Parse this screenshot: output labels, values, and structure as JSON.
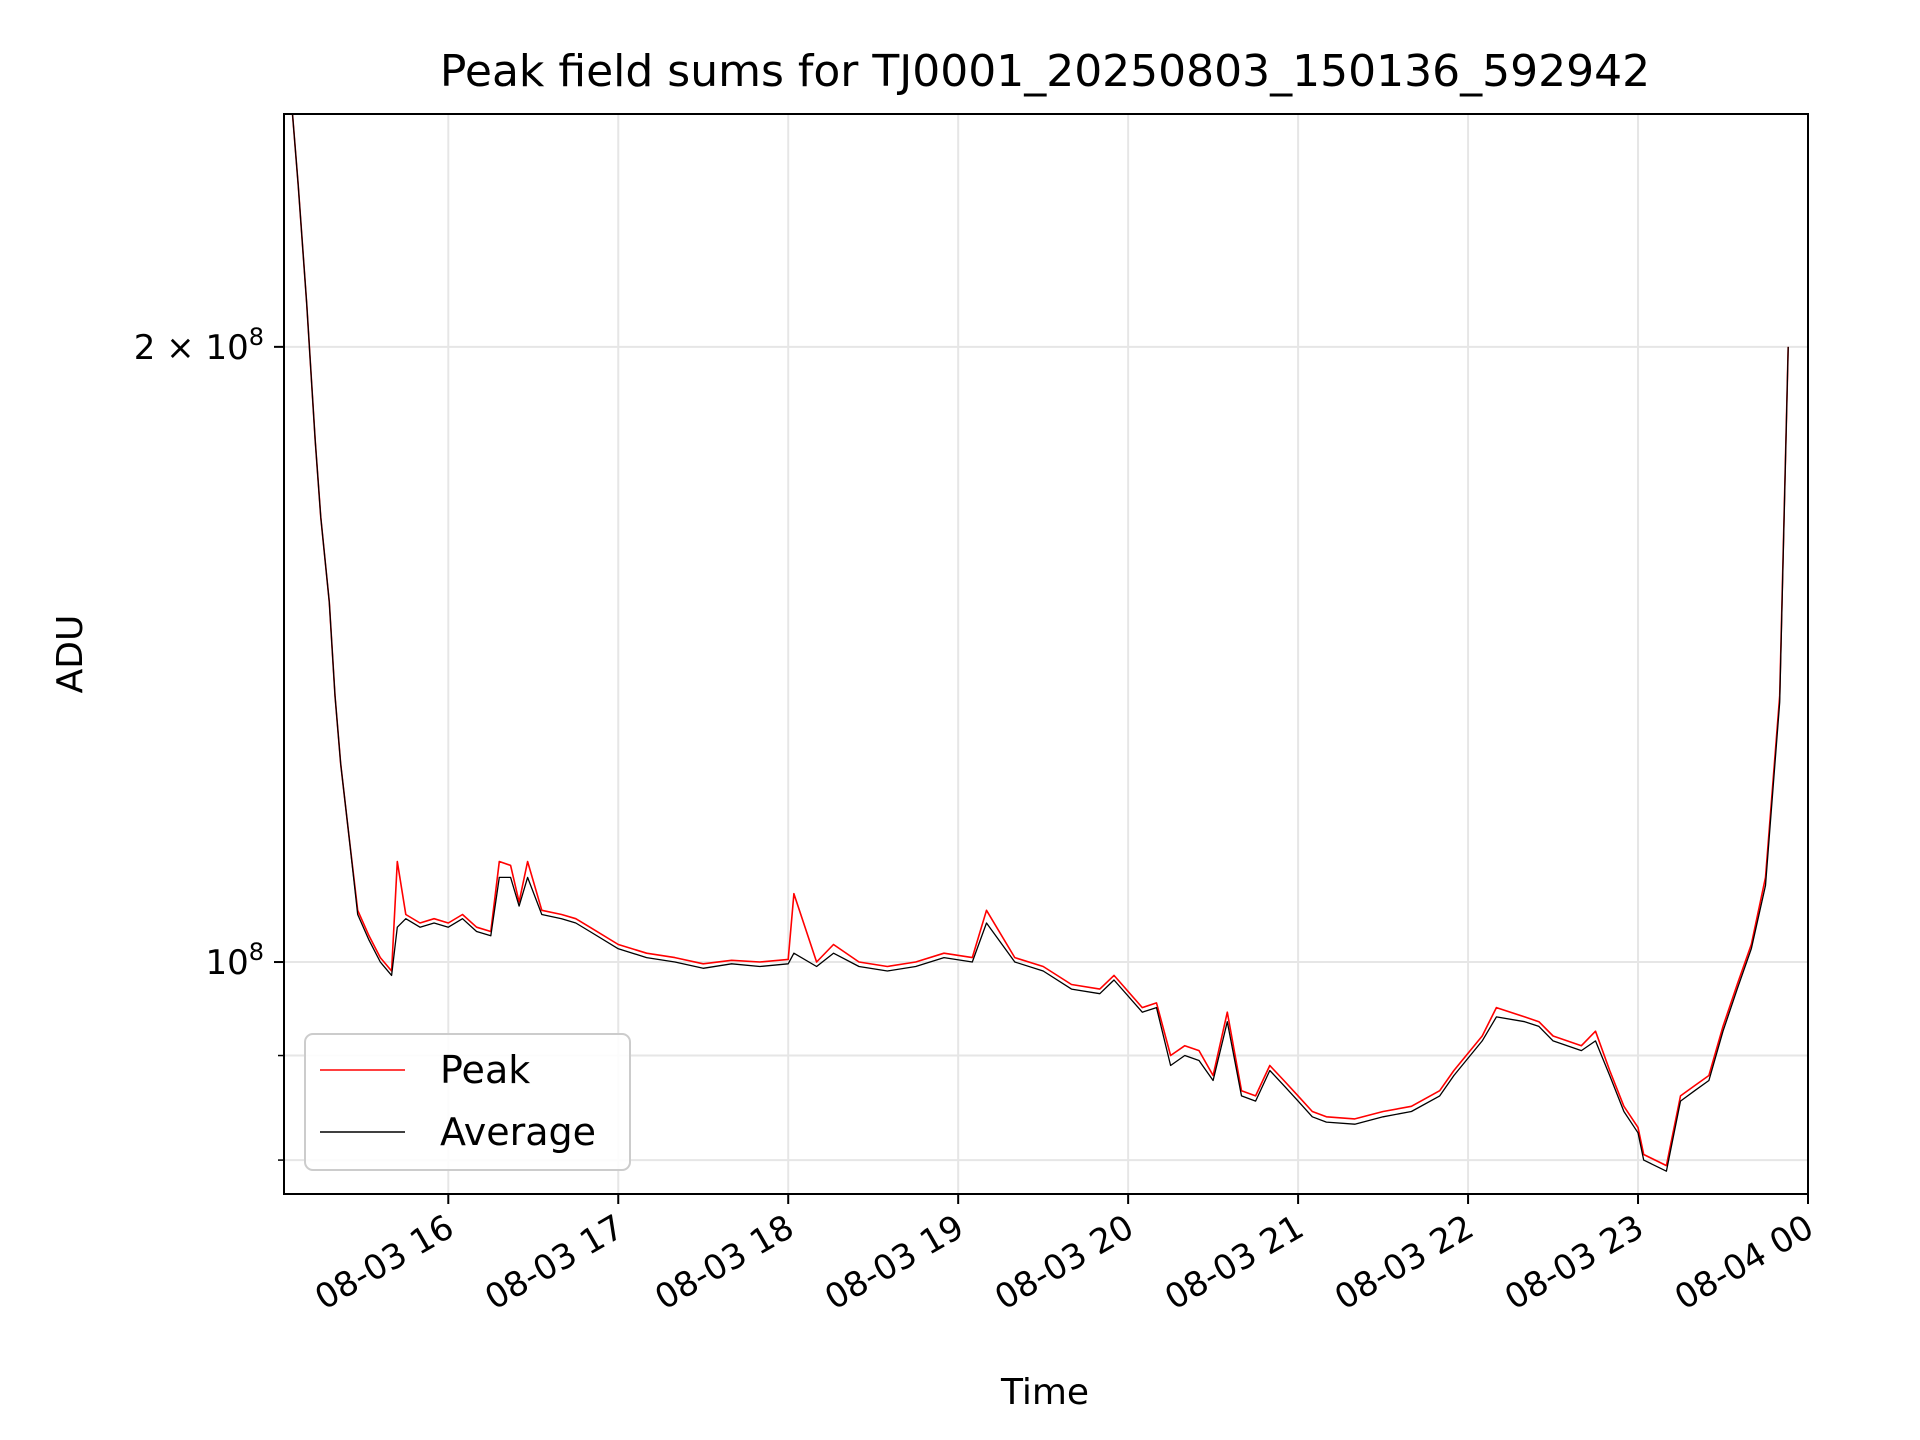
{
  "chart_data": {
    "type": "line",
    "title": "Peak field sums for TJ0001_20250803_150136_592942",
    "xlabel": "Time",
    "ylabel": "ADU",
    "y_scale": "log",
    "ylim": [
      77000000,
      260000000
    ],
    "xlim": [
      "2025-08-03 15:02",
      "2025-08-04 00:00"
    ],
    "grid": true,
    "legend_position": "lower-left",
    "x_ticks": [
      {
        "value": "2025-08-03 16:00",
        "label": "08-03 16"
      },
      {
        "value": "2025-08-03 17:00",
        "label": "08-03 17"
      },
      {
        "value": "2025-08-03 18:00",
        "label": "08-03 18"
      },
      {
        "value": "2025-08-03 19:00",
        "label": "08-03 19"
      },
      {
        "value": "2025-08-03 20:00",
        "label": "08-03 20"
      },
      {
        "value": "2025-08-03 21:00",
        "label": "08-03 21"
      },
      {
        "value": "2025-08-03 22:00",
        "label": "08-03 22"
      },
      {
        "value": "2025-08-03 23:00",
        "label": "08-03 23"
      },
      {
        "value": "2025-08-04 00:00",
        "label": "08-04 00"
      }
    ],
    "y_ticks": [
      {
        "value": 100000000,
        "base": "10",
        "exp": "8",
        "mult": ""
      },
      {
        "value": 200000000,
        "base": "10",
        "exp": "8",
        "mult": "2 × "
      }
    ],
    "y_minor_ticks": [
      80000000,
      90000000
    ],
    "series": [
      {
        "name": "Peak",
        "color": "#ff0000",
        "x": [
          "2025-08-03 15:05",
          "2025-08-03 15:07",
          "2025-08-03 15:10",
          "2025-08-03 15:13",
          "2025-08-03 15:15",
          "2025-08-03 15:18",
          "2025-08-03 15:20",
          "2025-08-03 15:22",
          "2025-08-03 15:25",
          "2025-08-03 15:28",
          "2025-08-03 15:32",
          "2025-08-03 15:36",
          "2025-08-03 15:40",
          "2025-08-03 15:42",
          "2025-08-03 15:45",
          "2025-08-03 15:50",
          "2025-08-03 15:55",
          "2025-08-03 16:00",
          "2025-08-03 16:05",
          "2025-08-03 16:10",
          "2025-08-03 16:15",
          "2025-08-03 16:18",
          "2025-08-03 16:22",
          "2025-08-03 16:25",
          "2025-08-03 16:28",
          "2025-08-03 16:33",
          "2025-08-03 16:40",
          "2025-08-03 16:45",
          "2025-08-03 16:50",
          "2025-08-03 17:00",
          "2025-08-03 17:10",
          "2025-08-03 17:20",
          "2025-08-03 17:30",
          "2025-08-03 17:40",
          "2025-08-03 17:50",
          "2025-08-03 18:00",
          "2025-08-03 18:02",
          "2025-08-03 18:10",
          "2025-08-03 18:16",
          "2025-08-03 18:25",
          "2025-08-03 18:35",
          "2025-08-03 18:45",
          "2025-08-03 18:55",
          "2025-08-03 19:05",
          "2025-08-03 19:10",
          "2025-08-03 19:20",
          "2025-08-03 19:30",
          "2025-08-03 19:40",
          "2025-08-03 19:50",
          "2025-08-03 19:55",
          "2025-08-03 20:05",
          "2025-08-03 20:10",
          "2025-08-03 20:15",
          "2025-08-03 20:20",
          "2025-08-03 20:25",
          "2025-08-03 20:30",
          "2025-08-03 20:35",
          "2025-08-03 20:40",
          "2025-08-03 20:45",
          "2025-08-03 20:50",
          "2025-08-03 20:55",
          "2025-08-03 21:00",
          "2025-08-03 21:05",
          "2025-08-03 21:10",
          "2025-08-03 21:20",
          "2025-08-03 21:30",
          "2025-08-03 21:40",
          "2025-08-03 21:50",
          "2025-08-03 21:55",
          "2025-08-03 22:05",
          "2025-08-03 22:10",
          "2025-08-03 22:20",
          "2025-08-03 22:25",
          "2025-08-03 22:30",
          "2025-08-03 22:40",
          "2025-08-03 22:45",
          "2025-08-03 22:50",
          "2025-08-03 22:55",
          "2025-08-03 23:00",
          "2025-08-03 23:02",
          "2025-08-03 23:10",
          "2025-08-03 23:15",
          "2025-08-03 23:20",
          "2025-08-03 23:25",
          "2025-08-03 23:30",
          "2025-08-03 23:35",
          "2025-08-03 23:40",
          "2025-08-03 23:45",
          "2025-08-03 23:50",
          "2025-08-03 23:53"
        ],
        "y": [
          260000000,
          240000000,
          210000000,
          180000000,
          165000000,
          150000000,
          135000000,
          125000000,
          115000000,
          106000000,
          103000000,
          100500000,
          99000000,
          112000000,
          105500000,
          104500000,
          105000000,
          104500000,
          105500000,
          104000000,
          103500000,
          112000000,
          111500000,
          107000000,
          112000000,
          106000000,
          105500000,
          105000000,
          104000000,
          102000000,
          101000000,
          100500000,
          99800000,
          100200000,
          100000000,
          100300000,
          108000000,
          100000000,
          102000000,
          100000000,
          99500000,
          100000000,
          101000000,
          100500000,
          106000000,
          100500000,
          99500000,
          97500000,
          97000000,
          98500000,
          95000000,
          95500000,
          90000000,
          91000000,
          90500000,
          88000000,
          94500000,
          86500000,
          86000000,
          89000000,
          87500000,
          86000000,
          84500000,
          84000000,
          83800000,
          84500000,
          85000000,
          86500000,
          88500000,
          92000000,
          95000000,
          94000000,
          93500000,
          92000000,
          91000000,
          92500000,
          88500000,
          85000000,
          83000000,
          80500000,
          79500000,
          86000000,
          87000000,
          88000000,
          93000000,
          97500000,
          102000000,
          110000000,
          135000000,
          200000000
        ]
      },
      {
        "name": "Average",
        "color": "#000000",
        "x": [
          "2025-08-03 15:05",
          "2025-08-03 15:07",
          "2025-08-03 15:10",
          "2025-08-03 15:13",
          "2025-08-03 15:15",
          "2025-08-03 15:18",
          "2025-08-03 15:20",
          "2025-08-03 15:22",
          "2025-08-03 15:25",
          "2025-08-03 15:28",
          "2025-08-03 15:32",
          "2025-08-03 15:36",
          "2025-08-03 15:40",
          "2025-08-03 15:42",
          "2025-08-03 15:45",
          "2025-08-03 15:50",
          "2025-08-03 15:55",
          "2025-08-03 16:00",
          "2025-08-03 16:05",
          "2025-08-03 16:10",
          "2025-08-03 16:15",
          "2025-08-03 16:18",
          "2025-08-03 16:22",
          "2025-08-03 16:25",
          "2025-08-03 16:28",
          "2025-08-03 16:33",
          "2025-08-03 16:40",
          "2025-08-03 16:45",
          "2025-08-03 16:50",
          "2025-08-03 17:00",
          "2025-08-03 17:10",
          "2025-08-03 17:20",
          "2025-08-03 17:30",
          "2025-08-03 17:40",
          "2025-08-03 17:50",
          "2025-08-03 18:00",
          "2025-08-03 18:02",
          "2025-08-03 18:10",
          "2025-08-03 18:16",
          "2025-08-03 18:25",
          "2025-08-03 18:35",
          "2025-08-03 18:45",
          "2025-08-03 18:55",
          "2025-08-03 19:05",
          "2025-08-03 19:10",
          "2025-08-03 19:20",
          "2025-08-03 19:30",
          "2025-08-03 19:40",
          "2025-08-03 19:50",
          "2025-08-03 19:55",
          "2025-08-03 20:05",
          "2025-08-03 20:10",
          "2025-08-03 20:15",
          "2025-08-03 20:20",
          "2025-08-03 20:25",
          "2025-08-03 20:30",
          "2025-08-03 20:35",
          "2025-08-03 20:40",
          "2025-08-03 20:45",
          "2025-08-03 20:50",
          "2025-08-03 20:55",
          "2025-08-03 21:00",
          "2025-08-03 21:05",
          "2025-08-03 21:10",
          "2025-08-03 21:20",
          "2025-08-03 21:30",
          "2025-08-03 21:40",
          "2025-08-03 21:50",
          "2025-08-03 21:55",
          "2025-08-03 22:05",
          "2025-08-03 22:10",
          "2025-08-03 22:20",
          "2025-08-03 22:25",
          "2025-08-03 22:30",
          "2025-08-03 22:40",
          "2025-08-03 22:45",
          "2025-08-03 22:50",
          "2025-08-03 22:55",
          "2025-08-03 23:00",
          "2025-08-03 23:02",
          "2025-08-03 23:10",
          "2025-08-03 23:15",
          "2025-08-03 23:20",
          "2025-08-03 23:25",
          "2025-08-03 23:30",
          "2025-08-03 23:35",
          "2025-08-03 23:40",
          "2025-08-03 23:45",
          "2025-08-03 23:50",
          "2025-08-03 23:53"
        ],
        "y": [
          260000000,
          240000000,
          210000000,
          180000000,
          165000000,
          150000000,
          135000000,
          125000000,
          115000000,
          105500000,
          102500000,
          100000000,
          98500000,
          104000000,
          105000000,
          104000000,
          104500000,
          104000000,
          105000000,
          103500000,
          103000000,
          110000000,
          110000000,
          106500000,
          110000000,
          105500000,
          105000000,
          104500000,
          103500000,
          101500000,
          100500000,
          100000000,
          99300000,
          99800000,
          99500000,
          99800000,
          101000000,
          99500000,
          101000000,
          99500000,
          99000000,
          99500000,
          100500000,
          100000000,
          104500000,
          100000000,
          99000000,
          97000000,
          96500000,
          98000000,
          94500000,
          95000000,
          89000000,
          90000000,
          89500000,
          87500000,
          93500000,
          86000000,
          85500000,
          88500000,
          87000000,
          85500000,
          84000000,
          83500000,
          83300000,
          84000000,
          84500000,
          86000000,
          88000000,
          91500000,
          94000000,
          93500000,
          93000000,
          91500000,
          90500000,
          91500000,
          88000000,
          84500000,
          82500000,
          80000000,
          79000000,
          85500000,
          86500000,
          87500000,
          92500000,
          97000000,
          101500000,
          109000000,
          134000000,
          200000000
        ]
      }
    ]
  }
}
